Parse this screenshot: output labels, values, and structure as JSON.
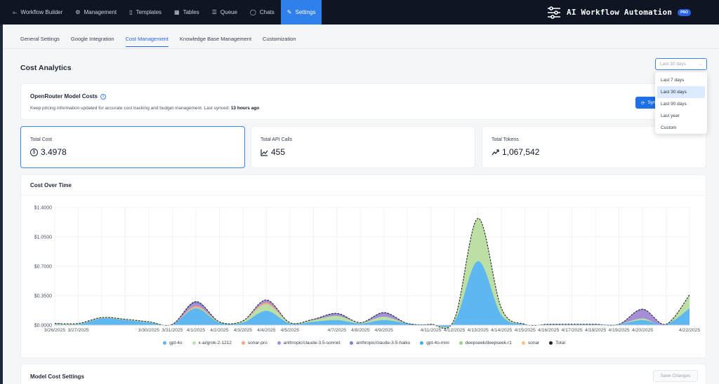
{
  "nav": {
    "items": [
      {
        "label": "Workflow Builder",
        "icon": "workflow-icon",
        "glyph": "⟜"
      },
      {
        "label": "Management",
        "icon": "gear-icon",
        "glyph": "⚙"
      },
      {
        "label": "Templates",
        "icon": "document-icon",
        "glyph": "▯"
      },
      {
        "label": "Tables",
        "icon": "table-icon",
        "glyph": "▦"
      },
      {
        "label": "Queue",
        "icon": "list-icon",
        "glyph": "☰"
      },
      {
        "label": "Chats",
        "icon": "chat-icon",
        "glyph": "◯"
      },
      {
        "label": "Settings",
        "icon": "wrench-icon",
        "glyph": "✎",
        "active": true
      }
    ],
    "brand_title": "AI Workflow Automation",
    "brand_badge": "PRO"
  },
  "subtabs": [
    "General Settings",
    "Google Integration",
    "Cost Management",
    "Knowledge Base Management",
    "Customization"
  ],
  "active_subtab": 2,
  "section_title": "Cost Analytics",
  "range_select": {
    "value": "Last 30 days",
    "options": [
      "Last 7 days",
      "Last 30 days",
      "Last 90 days",
      "Last year",
      "Custom"
    ],
    "selected": 1
  },
  "openrouter": {
    "title": "OpenRouter Model Costs",
    "desc_prefix": "Keep pricing information updated for accurate cost tracking and budget management. Last synced: ",
    "last_synced": "13 hours ago",
    "sync_label": "Sync"
  },
  "stats": [
    {
      "label": "Total Cost",
      "value": "3.4978",
      "icon": "dollar-icon",
      "glyph": "$"
    },
    {
      "label": "Total API Calls",
      "value": "455",
      "icon": "chart-icon",
      "glyph": "📈"
    },
    {
      "label": "Total Tokens",
      "value": "1,067,542",
      "icon": "trend-icon",
      "glyph": "↗"
    }
  ],
  "chart_title": "Cost Over Time",
  "settings_title": "Model Cost Settings",
  "save_label": "Save Changes",
  "colors": {
    "gpt-4o": "#5ab4f5",
    "grok": "#b7e3a5",
    "sonar-pro": "#f3a482",
    "sonnet": "#a98fd6",
    "haiku": "#7b7fd0",
    "gpt-4o-mini": "#43a7f0",
    "deepseek": "#8fd47e",
    "sonar": "#f2c47a",
    "total": "#222222"
  },
  "chart_data": {
    "type": "area",
    "x": [
      "3/26/2025",
      "3/27/2025",
      "3/28/2025",
      "3/29/2025",
      "3/30/2025",
      "3/31/2025",
      "4/1/2025",
      "4/2/2025",
      "4/3/2025",
      "4/4/2025",
      "4/5/2025",
      "4/6/2025",
      "4/7/2025",
      "4/8/2025",
      "4/9/2025",
      "4/10/2025",
      "4/11/2025",
      "4/12/2025",
      "4/13/2025",
      "4/14/2025",
      "4/15/2025",
      "4/16/2025",
      "4/17/2025",
      "4/18/2025",
      "4/19/2025",
      "4/20/2025",
      "4/21/2025",
      "4/22/2025"
    ],
    "x_tick_labels": [
      "3/26/2025",
      "3/27/2025",
      "3/30/2025",
      "3/31/2025",
      "4/1/2025",
      "4/2/2025",
      "4/3/2025",
      "4/4/2025",
      "4/5/2025",
      "4/7/2025",
      "4/8/2025",
      "4/9/2025",
      "4/11/2025",
      "4/12/2025",
      "4/13/2025",
      "4/14/2025",
      "4/15/2025",
      "4/16/2025",
      "4/17/2025",
      "4/18/2025",
      "4/19/2025",
      "4/20/2025",
      "4/22/2025"
    ],
    "y_ticks": [
      "$0.0000",
      "$0.3500",
      "$0.7000",
      "$1.0500",
      "$1.4000"
    ],
    "ylim": [
      0,
      1.4
    ],
    "stacked": true,
    "series": [
      {
        "name": "gpt-4o",
        "color_key": "gpt-4o",
        "values": [
          0.01,
          0.01,
          0.08,
          0.06,
          0.03,
          0.01,
          0.2,
          0.03,
          0.03,
          0.17,
          0.02,
          0.04,
          0.06,
          0.02,
          0.06,
          0.02,
          0.01,
          0.04,
          0.76,
          0.12,
          0.01,
          0.01,
          0.01,
          0.01,
          0.01,
          0.06,
          0.01,
          0.2
        ]
      },
      {
        "name": "x-ai/grok-2-1212",
        "color_key": "grok",
        "values": [
          0.01,
          0.01,
          0.01,
          0.01,
          0.01,
          0.0,
          0.01,
          0.01,
          0.02,
          0.08,
          0.01,
          0.02,
          0.05,
          0.01,
          0.04,
          0.0,
          0.0,
          0.03,
          0.51,
          0.08,
          0.0,
          0.0,
          0.0,
          0.0,
          0.0,
          0.02,
          0.0,
          0.16
        ]
      },
      {
        "name": "sonar-pro",
        "color_key": "sonar-pro",
        "values": [
          0.0,
          0.0,
          0.0,
          0.0,
          0.0,
          0.0,
          0.02,
          0.0,
          0.0,
          0.02,
          0.0,
          0.0,
          0.0,
          0.0,
          0.0,
          0.0,
          0.0,
          0.0,
          0.0,
          0.0,
          0.0,
          0.0,
          0.0,
          0.0,
          0.0,
          0.0,
          0.0,
          0.0
        ]
      },
      {
        "name": "anthropic/claude-3.5-sonnet",
        "color_key": "sonnet",
        "values": [
          0.0,
          0.0,
          0.0,
          0.0,
          0.0,
          0.0,
          0.03,
          0.0,
          0.0,
          0.03,
          0.0,
          0.01,
          0.02,
          0.0,
          0.04,
          0.0,
          0.0,
          0.0,
          0.0,
          0.0,
          0.0,
          0.0,
          0.0,
          0.0,
          0.0,
          0.1,
          0.0,
          0.0
        ]
      },
      {
        "name": "anthropic/claude-3-5-haiku",
        "color_key": "haiku",
        "values": [
          0.0,
          0.0,
          0.0,
          0.0,
          0.0,
          0.0,
          0.02,
          0.0,
          0.0,
          0.0,
          0.0,
          0.0,
          0.01,
          0.0,
          0.01,
          0.0,
          0.0,
          0.0,
          0.0,
          0.0,
          0.0,
          0.0,
          0.0,
          0.0,
          0.0,
          0.01,
          0.0,
          0.0
        ]
      },
      {
        "name": "gpt-4o-mini",
        "color_key": "gpt-4o-mini",
        "values": [
          0.0,
          0.0,
          0.0,
          0.0,
          0.0,
          0.0,
          0.0,
          0.0,
          0.0,
          0.0,
          0.0,
          0.0,
          0.0,
          0.0,
          0.0,
          0.0,
          0.0,
          0.0,
          0.0,
          0.0,
          0.0,
          0.0,
          0.0,
          0.0,
          0.0,
          0.0,
          0.0,
          0.0
        ]
      },
      {
        "name": "deepseek/deepseek-r1",
        "color_key": "deepseek",
        "values": [
          0.0,
          0.0,
          0.0,
          0.0,
          0.0,
          0.0,
          0.0,
          0.0,
          0.0,
          0.0,
          0.0,
          0.0,
          0.0,
          0.0,
          0.0,
          0.0,
          0.0,
          0.0,
          0.0,
          0.0,
          0.0,
          0.0,
          0.0,
          0.0,
          0.0,
          0.0,
          0.0,
          0.0
        ]
      },
      {
        "name": "sonar",
        "color_key": "sonar",
        "values": [
          0.0,
          0.0,
          0.0,
          0.0,
          0.0,
          0.0,
          0.0,
          0.0,
          0.0,
          0.0,
          0.0,
          0.0,
          0.0,
          0.0,
          0.0,
          0.0,
          0.0,
          0.0,
          0.0,
          0.0,
          0.0,
          0.0,
          0.0,
          0.0,
          0.0,
          0.0,
          0.0,
          0.0
        ]
      }
    ],
    "total": {
      "name": "Total",
      "color_key": "total",
      "values": [
        0.02,
        0.02,
        0.09,
        0.07,
        0.04,
        0.01,
        0.28,
        0.04,
        0.05,
        0.3,
        0.03,
        0.07,
        0.14,
        0.03,
        0.15,
        0.02,
        0.01,
        0.07,
        1.27,
        0.2,
        0.01,
        0.01,
        0.01,
        0.01,
        0.01,
        0.19,
        0.01,
        0.36
      ]
    },
    "grid": true,
    "legend_position": "bottom"
  }
}
